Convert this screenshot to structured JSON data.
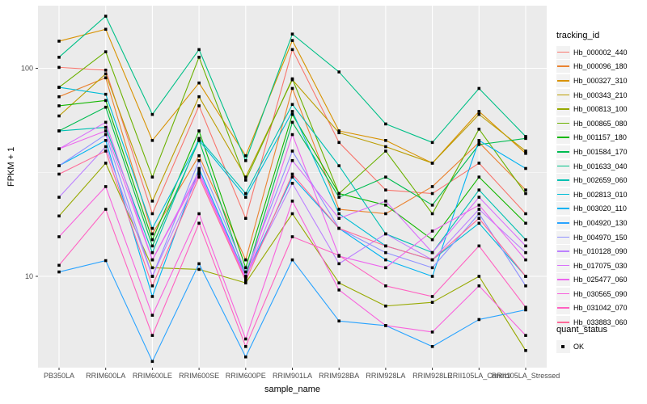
{
  "chart_data": {
    "type": "line",
    "title": "",
    "xlabel": "sample_name",
    "ylabel": "FPKM + 1",
    "y_scale": "log10",
    "ylim": [
      3.6,
      200
    ],
    "y_major_ticks": [
      10,
      100
    ],
    "y_tick_labels": [
      "10",
      "100"
    ],
    "y_minor_ticks": [
      3.162,
      31.62
    ],
    "grid": true,
    "legend_position": "right",
    "legend_color_title": "tracking_id",
    "legend_shape_title": "quant_status",
    "quant_status_label": "OK",
    "point_shape": "filled-square",
    "point_color": "#000000",
    "panel_bg": "#EBEBEB",
    "grid_color": "#FFFFFF",
    "tick_label_color": "#4D4D4D",
    "categories": [
      "PB350LA",
      "RRIM600LA",
      "RRIM600LE",
      "RRIM600SE",
      "RRIM600PE",
      "RRIM901LA",
      "RRIM928BA",
      "RRIM928LA",
      "RRIM928LE",
      "RRII105LA_Control",
      "RRII105LA_Stressed"
    ],
    "series": [
      {
        "name": "Hb_000002_440",
        "color": "#F8766D",
        "values": [
          101,
          98,
          20,
          66,
          19,
          123,
          44,
          26,
          25,
          35,
          20
        ]
      },
      {
        "name": "Hb_000096_180",
        "color": "#EA8331",
        "values": [
          73,
          90,
          16,
          38,
          12,
          80,
          21,
          20,
          27,
          44,
          26
        ]
      },
      {
        "name": "Hb_000327_310",
        "color": "#D89200",
        "values": [
          135,
          154,
          45,
          85,
          38,
          136,
          50,
          45,
          35,
          62,
          39
        ]
      },
      {
        "name": "Hb_000343_210",
        "color": "#BB9D00",
        "values": [
          59,
          94,
          23,
          73,
          30,
          88,
          49,
          42,
          35,
          60,
          40
        ]
      },
      {
        "name": "Hb_000813_100",
        "color": "#97A900",
        "values": [
          19.5,
          35,
          11,
          10.8,
          9.3,
          20,
          9.3,
          7.2,
          7.5,
          10,
          4.4
        ]
      },
      {
        "name": "Hb_000865_080",
        "color": "#6BB100",
        "values": [
          81,
          120,
          30,
          113,
          29,
          89,
          25,
          40,
          20,
          51,
          25
        ]
      },
      {
        "name": "Hb_001157_180",
        "color": "#13B700",
        "values": [
          66,
          70,
          15,
          50,
          11,
          60,
          25,
          22,
          15,
          30,
          18
        ]
      },
      {
        "name": "Hb_001584_170",
        "color": "#00BC51",
        "values": [
          50,
          65,
          14,
          45,
          10,
          55,
          24,
          30,
          22,
          43,
          46
        ]
      },
      {
        "name": "Hb_001633_040",
        "color": "#00C087",
        "values": [
          113,
          178,
          60,
          123,
          36,
          146,
          96,
          54,
          44,
          80,
          47
        ]
      },
      {
        "name": "Hb_002659_060",
        "color": "#00C0B2",
        "values": [
          50,
          52,
          13,
          46,
          25,
          67,
          34,
          16,
          13,
          26,
          15
        ]
      },
      {
        "name": "Hb_002813_010",
        "color": "#00BCD6",
        "values": [
          81,
          75,
          17,
          45,
          24,
          62,
          20,
          14,
          12,
          18,
          10
        ]
      },
      {
        "name": "Hb_003020_110",
        "color": "#00B3F2",
        "values": [
          34,
          45,
          8,
          33,
          10,
          30,
          17,
          12,
          10,
          45,
          33
        ]
      },
      {
        "name": "Hb_004920_130",
        "color": "#29A3FF",
        "values": [
          10.5,
          11.9,
          3.9,
          11.5,
          4.1,
          12,
          6.1,
          5.8,
          4.6,
          6.2,
          6.9
        ]
      },
      {
        "name": "Hb_004970_150",
        "color": "#8F91FF",
        "values": [
          34,
          48,
          10,
          36,
          10.5,
          40,
          17,
          13,
          11,
          20,
          9
        ]
      },
      {
        "name": "Hb_010128_090",
        "color": "#BC81FF",
        "values": [
          24,
          42,
          10,
          31,
          10,
          28,
          11.5,
          16,
          12,
          21,
          13
        ]
      },
      {
        "name": "Hb_017075_030",
        "color": "#D970FB",
        "values": [
          41,
          55,
          12,
          32,
          9.8,
          36,
          19,
          23,
          13,
          24,
          14
        ]
      },
      {
        "name": "Hb_025477_060",
        "color": "#EC67EE",
        "values": [
          41,
          50,
          12,
          31,
          9.7,
          48,
          12.5,
          11,
          16.5,
          22,
          12
        ]
      },
      {
        "name": "Hb_030565_090",
        "color": "#F863DD",
        "values": [
          15.5,
          27,
          6.5,
          20,
          5.0,
          23,
          8.6,
          5.8,
          5.4,
          9.0,
          5.2
        ]
      },
      {
        "name": "Hb_031042_070",
        "color": "#FF62C1",
        "values": [
          11.3,
          21,
          5.2,
          18,
          4.6,
          15.5,
          12.6,
          9,
          8,
          14,
          7.1
        ]
      },
      {
        "name": "Hb_033883_060",
        "color": "#FF6A98",
        "values": [
          31,
          40,
          9,
          30,
          9.5,
          31,
          17,
          14,
          12,
          19,
          10
        ]
      }
    ]
  }
}
